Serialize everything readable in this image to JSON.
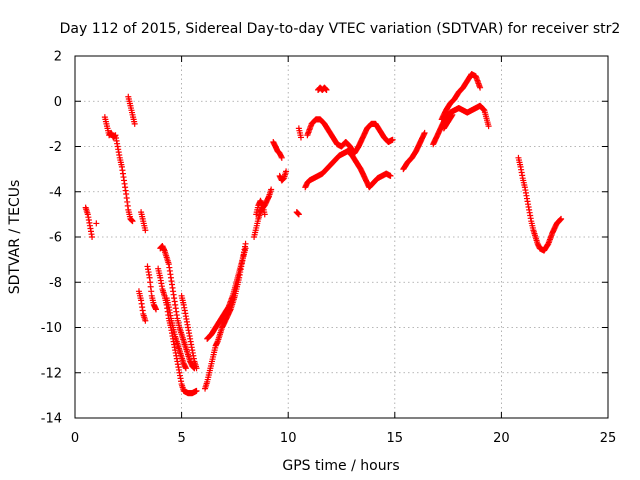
{
  "chart_data": {
    "type": "scatter",
    "title": "Day 112 of 2015, Sidereal Day-to-day VTEC variation (SDTVAR) for receiver str2",
    "xlabel": "GPS time / hours",
    "ylabel": "SDTVAR / TECUs",
    "xlim": [
      0,
      25
    ],
    "ylim": [
      -14,
      2
    ],
    "xticks": [
      0,
      5,
      10,
      15,
      20,
      25
    ],
    "yticks": [
      -14,
      -12,
      -10,
      -8,
      -6,
      -4,
      -2,
      0,
      2
    ],
    "grid": true,
    "marker": "+",
    "color": "#ff0000",
    "segments": [
      [
        [
          0.5,
          -4.7
        ],
        [
          0.6,
          -5.0
        ],
        [
          0.7,
          -5.5
        ],
        [
          0.8,
          -6.0
        ]
      ],
      [
        [
          1.0,
          -5.4
        ]
      ],
      [
        [
          1.4,
          -0.7
        ],
        [
          1.5,
          -1.1
        ],
        [
          1.6,
          -1.5
        ],
        [
          1.7,
          -1.4
        ],
        [
          1.8,
          -1.6
        ],
        [
          1.9,
          -1.5
        ],
        [
          2.0,
          -2.0
        ],
        [
          2.1,
          -2.5
        ],
        [
          2.2,
          -2.9
        ],
        [
          2.3,
          -3.5
        ],
        [
          2.4,
          -4.1
        ],
        [
          2.5,
          -4.8
        ],
        [
          2.6,
          -5.2
        ],
        [
          2.7,
          -5.3
        ]
      ],
      [
        [
          2.5,
          0.2
        ],
        [
          2.6,
          -0.2
        ],
        [
          2.7,
          -0.6
        ],
        [
          2.8,
          -1.0
        ]
      ],
      [
        [
          3.0,
          -8.4
        ],
        [
          3.1,
          -8.8
        ],
        [
          3.2,
          -9.4
        ],
        [
          3.3,
          -9.7
        ]
      ],
      [
        [
          3.1,
          -4.9
        ],
        [
          3.2,
          -5.3
        ],
        [
          3.3,
          -5.7
        ]
      ],
      [
        [
          3.4,
          -7.3
        ],
        [
          3.5,
          -7.8
        ],
        [
          3.6,
          -8.6
        ],
        [
          3.7,
          -9.0
        ],
        [
          3.8,
          -9.2
        ]
      ],
      [
        [
          3.9,
          -7.4
        ],
        [
          4.0,
          -7.8
        ],
        [
          4.1,
          -8.3
        ],
        [
          4.2,
          -8.6
        ],
        [
          4.3,
          -9.0
        ],
        [
          4.4,
          -9.6
        ],
        [
          4.5,
          -10.0
        ],
        [
          4.6,
          -10.5
        ],
        [
          4.7,
          -11.0
        ],
        [
          4.8,
          -11.5
        ],
        [
          4.9,
          -12.0
        ],
        [
          5.0,
          -12.5
        ],
        [
          5.1,
          -12.8
        ],
        [
          5.3,
          -12.9
        ],
        [
          5.5,
          -12.9
        ],
        [
          5.7,
          -12.8
        ]
      ],
      [
        [
          4.0,
          -6.5
        ],
        [
          4.1,
          -6.4
        ],
        [
          4.2,
          -6.6
        ],
        [
          4.3,
          -6.9
        ],
        [
          4.4,
          -7.2
        ],
        [
          4.5,
          -7.8
        ],
        [
          4.6,
          -8.4
        ],
        [
          4.7,
          -9.0
        ],
        [
          4.8,
          -9.6
        ],
        [
          4.9,
          -10.0
        ],
        [
          5.0,
          -10.3
        ],
        [
          5.1,
          -10.6
        ],
        [
          5.2,
          -10.9
        ],
        [
          5.3,
          -11.2
        ],
        [
          5.4,
          -11.5
        ],
        [
          5.5,
          -11.7
        ],
        [
          5.6,
          -11.8
        ]
      ],
      [
        [
          4.3,
          -8.7
        ],
        [
          4.4,
          -9.1
        ],
        [
          4.5,
          -9.6
        ],
        [
          4.6,
          -10.0
        ],
        [
          4.7,
          -10.4
        ],
        [
          4.8,
          -10.7
        ],
        [
          4.9,
          -11.0
        ],
        [
          5.0,
          -11.3
        ],
        [
          5.1,
          -11.6
        ],
        [
          5.2,
          -11.8
        ]
      ],
      [
        [
          5.0,
          -8.6
        ],
        [
          5.1,
          -9.0
        ],
        [
          5.2,
          -9.5
        ],
        [
          5.3,
          -10.0
        ],
        [
          5.4,
          -10.5
        ],
        [
          5.5,
          -11.0
        ],
        [
          5.6,
          -11.5
        ],
        [
          5.7,
          -11.8
        ]
      ],
      [
        [
          6.1,
          -12.7
        ],
        [
          6.2,
          -12.4
        ],
        [
          6.3,
          -12.0
        ],
        [
          6.4,
          -11.6
        ],
        [
          6.5,
          -11.2
        ],
        [
          6.6,
          -10.8
        ],
        [
          6.7,
          -10.6
        ],
        [
          6.8,
          -10.3
        ],
        [
          6.9,
          -10.0
        ],
        [
          7.0,
          -9.8
        ],
        [
          7.1,
          -9.6
        ],
        [
          7.2,
          -9.4
        ],
        [
          7.3,
          -9.2
        ],
        [
          7.4,
          -8.9
        ],
        [
          7.5,
          -8.6
        ],
        [
          7.6,
          -8.2
        ],
        [
          7.7,
          -7.8
        ],
        [
          7.8,
          -7.3
        ],
        [
          7.9,
          -6.8
        ],
        [
          8.0,
          -6.3
        ]
      ],
      [
        [
          6.2,
          -10.5
        ],
        [
          6.4,
          -10.3
        ],
        [
          6.6,
          -10.0
        ],
        [
          6.8,
          -9.7
        ],
        [
          7.0,
          -9.4
        ],
        [
          7.2,
          -9.1
        ],
        [
          7.4,
          -8.6
        ],
        [
          7.6,
          -7.9
        ],
        [
          7.8,
          -7.2
        ],
        [
          8.0,
          -6.5
        ]
      ],
      [
        [
          8.4,
          -6.0
        ],
        [
          8.5,
          -5.6
        ],
        [
          8.6,
          -5.2
        ],
        [
          8.7,
          -4.9
        ],
        [
          8.8,
          -4.7
        ],
        [
          8.9,
          -4.6
        ],
        [
          9.0,
          -4.4
        ],
        [
          9.1,
          -4.2
        ],
        [
          9.2,
          -3.9
        ]
      ],
      [
        [
          8.5,
          -5.0
        ],
        [
          8.6,
          -4.6
        ],
        [
          8.7,
          -4.4
        ],
        [
          8.8,
          -4.6
        ],
        [
          8.9,
          -5.0
        ]
      ],
      [
        [
          9.3,
          -1.8
        ],
        [
          9.4,
          -2.0
        ],
        [
          9.5,
          -2.2
        ],
        [
          9.6,
          -2.3
        ],
        [
          9.7,
          -2.5
        ]
      ],
      [
        [
          9.6,
          -3.3
        ],
        [
          9.7,
          -3.5
        ],
        [
          9.8,
          -3.4
        ],
        [
          9.9,
          -3.1
        ]
      ],
      [
        [
          10.4,
          -4.9
        ],
        [
          10.5,
          -5.0
        ]
      ],
      [
        [
          10.5,
          -1.2
        ],
        [
          10.6,
          -1.6
        ]
      ],
      [
        [
          10.8,
          -3.8
        ],
        [
          10.9,
          -3.6
        ],
        [
          11.0,
          -3.5
        ],
        [
          11.2,
          -3.4
        ],
        [
          11.4,
          -3.3
        ],
        [
          11.6,
          -3.2
        ],
        [
          11.8,
          -3.0
        ],
        [
          12.0,
          -2.8
        ],
        [
          12.2,
          -2.6
        ],
        [
          12.4,
          -2.4
        ],
        [
          12.6,
          -2.3
        ],
        [
          12.8,
          -2.2
        ],
        [
          13.0,
          -2.4
        ],
        [
          13.2,
          -2.7
        ],
        [
          13.4,
          -3.0
        ],
        [
          13.6,
          -3.4
        ],
        [
          13.8,
          -3.8
        ],
        [
          14.0,
          -3.6
        ],
        [
          14.2,
          -3.4
        ],
        [
          14.4,
          -3.3
        ],
        [
          14.6,
          -3.2
        ],
        [
          14.8,
          -3.3
        ]
      ],
      [
        [
          10.9,
          -1.5
        ],
        [
          11.1,
          -1.0
        ],
        [
          11.3,
          -0.8
        ],
        [
          11.5,
          -0.8
        ],
        [
          11.7,
          -1.0
        ],
        [
          11.9,
          -1.3
        ],
        [
          12.1,
          -1.6
        ],
        [
          12.3,
          -1.9
        ],
        [
          12.5,
          -2.0
        ],
        [
          12.7,
          -1.8
        ],
        [
          12.9,
          -2.0
        ],
        [
          13.1,
          -2.3
        ],
        [
          13.3,
          -2.0
        ],
        [
          13.5,
          -1.6
        ],
        [
          13.7,
          -1.2
        ],
        [
          13.9,
          -1.0
        ],
        [
          14.1,
          -1.0
        ],
        [
          14.3,
          -1.3
        ],
        [
          14.5,
          -1.6
        ],
        [
          14.7,
          -1.8
        ],
        [
          14.9,
          -1.7
        ]
      ],
      [
        [
          11.4,
          0.5
        ],
        [
          11.5,
          0.6
        ],
        [
          11.6,
          0.5
        ],
        [
          11.7,
          0.6
        ],
        [
          11.8,
          0.5
        ]
      ],
      [
        [
          15.4,
          -3.0
        ],
        [
          15.6,
          -2.7
        ],
        [
          15.8,
          -2.5
        ],
        [
          16.0,
          -2.2
        ],
        [
          16.2,
          -1.8
        ],
        [
          16.4,
          -1.4
        ]
      ],
      [
        [
          16.8,
          -1.9
        ],
        [
          17.0,
          -1.5
        ],
        [
          17.2,
          -1.1
        ],
        [
          17.4,
          -0.7
        ],
        [
          17.6,
          -0.5
        ],
        [
          17.8,
          -0.4
        ],
        [
          18.0,
          -0.3
        ],
        [
          18.2,
          -0.4
        ],
        [
          18.4,
          -0.5
        ],
        [
          18.6,
          -0.4
        ],
        [
          18.8,
          -0.3
        ],
        [
          19.0,
          -0.2
        ],
        [
          19.2,
          -0.4
        ],
        [
          19.4,
          -1.1
        ]
      ],
      [
        [
          17.2,
          -0.8
        ],
        [
          17.4,
          -0.4
        ],
        [
          17.6,
          -0.1
        ],
        [
          17.8,
          0.1
        ],
        [
          18.0,
          0.4
        ],
        [
          18.2,
          0.6
        ],
        [
          18.4,
          0.9
        ],
        [
          18.6,
          1.2
        ],
        [
          18.8,
          1.1
        ],
        [
          19.0,
          0.6
        ]
      ],
      [
        [
          17.3,
          -1.2
        ],
        [
          17.5,
          -0.9
        ],
        [
          17.7,
          -0.6
        ]
      ],
      [
        [
          20.8,
          -2.5
        ],
        [
          20.9,
          -2.9
        ],
        [
          21.0,
          -3.4
        ],
        [
          21.1,
          -3.8
        ],
        [
          21.2,
          -4.3
        ],
        [
          21.3,
          -4.8
        ],
        [
          21.4,
          -5.3
        ],
        [
          21.5,
          -5.7
        ],
        [
          21.6,
          -6.0
        ],
        [
          21.7,
          -6.3
        ],
        [
          21.8,
          -6.5
        ],
        [
          22.0,
          -6.6
        ],
        [
          22.2,
          -6.3
        ],
        [
          22.4,
          -5.8
        ],
        [
          22.6,
          -5.4
        ],
        [
          22.8,
          -5.2
        ]
      ]
    ]
  }
}
